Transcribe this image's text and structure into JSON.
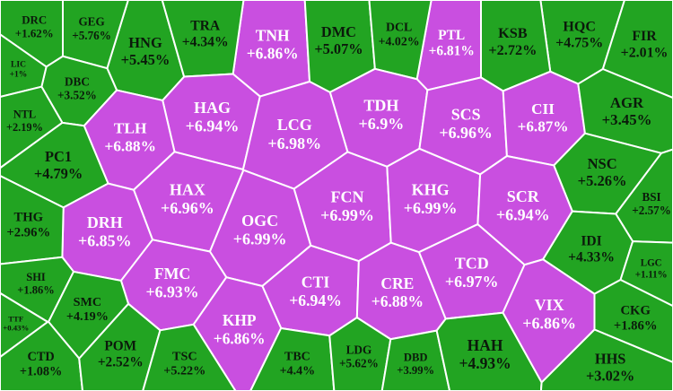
{
  "chart_data": {
    "type": "voronoi",
    "categories": [
      "TNH",
      "DMC",
      "PTL",
      "HQC",
      "HNG",
      "DRC",
      "GEG",
      "TRA",
      "DCL",
      "KSB",
      "FIR",
      "DBC",
      "LIC",
      "NTL",
      "HAG",
      "TDH",
      "LCG",
      "SCS",
      "CII",
      "AGR",
      "TLH",
      "PC1",
      "NSC",
      "HAX",
      "FCN",
      "KHG",
      "SCR",
      "DRH",
      "OGC",
      "THG",
      "BSI",
      "IDI",
      "SHI",
      "FMC",
      "CTI",
      "CRE",
      "TCD",
      "LGC",
      "SMC",
      "VIX",
      "KHP",
      "CKG",
      "TTF",
      "CTD",
      "POM",
      "TSC",
      "TBC",
      "LDG",
      "DBD",
      "HAH",
      "HHS"
    ],
    "values": [
      6.86,
      5.07,
      6.81,
      4.75,
      5.45,
      1.62,
      5.76,
      4.34,
      4.02,
      2.72,
      2.01,
      3.52,
      1,
      2.19,
      6.94,
      6.9,
      6.98,
      6.96,
      6.87,
      3.45,
      6.88,
      4.79,
      5.26,
      6.96,
      6.99,
      6.99,
      6.94,
      6.85,
      6.99,
      2.96,
      2.57,
      4.33,
      1.86,
      6.93,
      6.94,
      6.88,
      6.97,
      1.11,
      4.19,
      6.86,
      6.86,
      1.86,
      0.43,
      1.08,
      2.52,
      5.22,
      4.4,
      5.62,
      3.99,
      4.93,
      3.02
    ],
    "value_labels": [
      "+6.86%",
      "+5.07%",
      "+6.81%",
      "+4.75%",
      "+5.45%",
      "+1.62%",
      "+5.76%",
      "+4.34%",
      "+4.02%",
      "+2.72%",
      "+2.01%",
      "+3.52%",
      "+1%",
      "+2.19%",
      "+6.94%",
      "+6.9%",
      "+6.98%",
      "+6.96%",
      "+6.87%",
      "+3.45%",
      "+6.88%",
      "+4.79%",
      "+5.26%",
      "+6.96%",
      "+6.99%",
      "+6.99%",
      "+6.94%",
      "+6.85%",
      "+6.99%",
      "+2.96%",
      "+2.57%",
      "+4.33%",
      "+1.86%",
      "+6.93%",
      "+6.94%",
      "+6.88%",
      "+6.97%",
      "+1.11%",
      "+4.19%",
      "+6.86%",
      "+6.86%",
      "+1.86%",
      "+0.43%",
      "+1.08%",
      "+2.52%",
      "+5.22%",
      "+4.4%",
      "+5.62%",
      "+3.99%",
      "+4.93%",
      "+3.02%"
    ],
    "colors": [
      "#c94fe0",
      "#22a422",
      "#c94fe0",
      "#22a422",
      "#22a422",
      "#22a422",
      "#22a422",
      "#22a422",
      "#22a422",
      "#22a422",
      "#22a422",
      "#22a422",
      "#22a422",
      "#22a422",
      "#c94fe0",
      "#c94fe0",
      "#c94fe0",
      "#c94fe0",
      "#c94fe0",
      "#22a422",
      "#c94fe0",
      "#22a422",
      "#22a422",
      "#c94fe0",
      "#c94fe0",
      "#c94fe0",
      "#c94fe0",
      "#c94fe0",
      "#c94fe0",
      "#22a422",
      "#22a422",
      "#22a422",
      "#22a422",
      "#c94fe0",
      "#c94fe0",
      "#c94fe0",
      "#c94fe0",
      "#22a422",
      "#22a422",
      "#c94fe0",
      "#c94fe0",
      "#22a422",
      "#22a422",
      "#22a422",
      "#22a422",
      "#22a422",
      "#22a422",
      "#22a422",
      "#22a422",
      "#22a422",
      "#22a422"
    ]
  }
}
